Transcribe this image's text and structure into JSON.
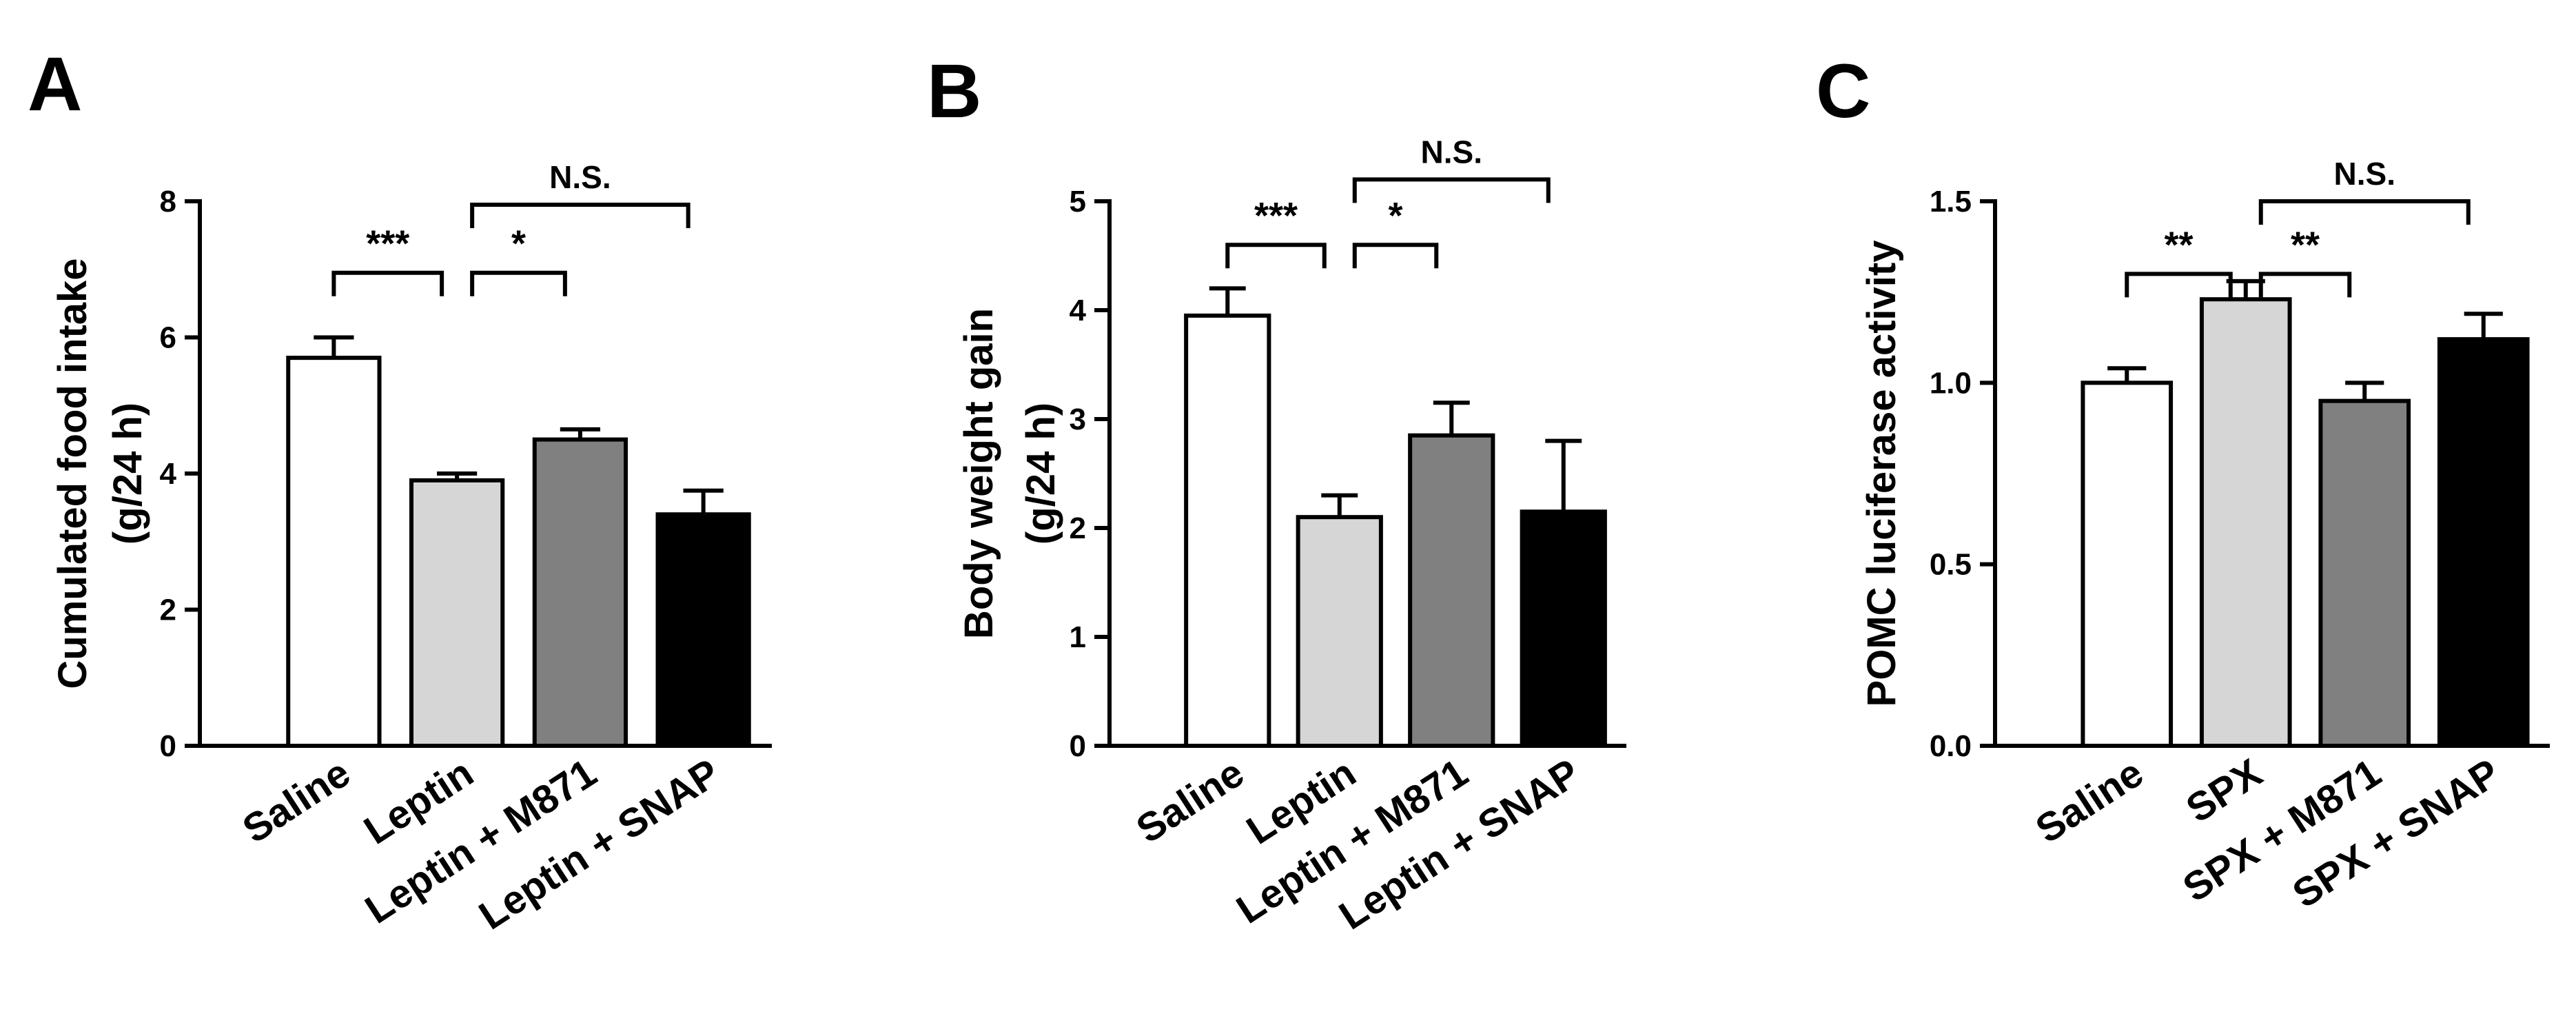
{
  "chart_data": [
    {
      "panel_label": "A",
      "type": "bar",
      "categories": [
        "Saline",
        "Leptin",
        "Leptin + M871",
        "Leptin + SNAP"
      ],
      "values": [
        5.7,
        3.9,
        4.5,
        3.4
      ],
      "errors": [
        0.3,
        0.1,
        0.15,
        0.35
      ],
      "colors": [
        "#ffffff",
        "#d6d6d6",
        "#808080",
        "#000000"
      ],
      "ylabel": "Cumulated food intake",
      "ylabel_unit": "(g/24 h)",
      "ylim": [
        0,
        8
      ],
      "yticks": [
        0,
        2,
        4,
        6,
        8
      ],
      "ytick_labels": [
        "0",
        "2",
        "4",
        "6",
        "8"
      ],
      "significance": [
        {
          "from": 0,
          "to": 1,
          "label": "***",
          "level": 6.95
        },
        {
          "from": 1,
          "to": 2,
          "label": "*",
          "level": 6.95
        },
        {
          "from": 1,
          "to": 3,
          "label": "N.S.",
          "level": 7.95
        }
      ]
    },
    {
      "panel_label": "B",
      "type": "bar",
      "categories": [
        "Saline",
        "Leptin",
        "Leptin + M871",
        "Leptin + SNAP"
      ],
      "values": [
        3.95,
        2.1,
        2.85,
        2.15
      ],
      "errors": [
        0.25,
        0.2,
        0.3,
        0.65
      ],
      "colors": [
        "#ffffff",
        "#d6d6d6",
        "#808080",
        "#000000"
      ],
      "ylabel": "Body weight gain",
      "ylabel_unit": "(g/24 h)",
      "ylim": [
        0,
        5
      ],
      "yticks": [
        0,
        1,
        2,
        3,
        4,
        5
      ],
      "ytick_labels": [
        "0",
        "1",
        "2",
        "3",
        "4",
        "5"
      ],
      "significance": [
        {
          "from": 0,
          "to": 1,
          "label": "***",
          "level": 4.6
        },
        {
          "from": 1,
          "to": 2,
          "label": "*",
          "level": 4.6
        },
        {
          "from": 1,
          "to": 3,
          "label": "N.S.",
          "level": 5.2
        }
      ]
    },
    {
      "panel_label": "C",
      "type": "bar",
      "categories": [
        "Saline",
        "SPX",
        "SPX + M871",
        "SPX + SNAP"
      ],
      "values": [
        1.0,
        1.23,
        0.95,
        1.12
      ],
      "errors": [
        0.04,
        0.05,
        0.05,
        0.07
      ],
      "colors": [
        "#ffffff",
        "#d6d6d6",
        "#808080",
        "#000000"
      ],
      "ylabel": "POMC luciferase activity",
      "ylabel_unit": "",
      "ylim": [
        0,
        1.5
      ],
      "yticks": [
        0,
        0.5,
        1.0,
        1.5
      ],
      "ytick_labels": [
        "0.0",
        "0.5",
        "1.0",
        "1.5"
      ],
      "significance": [
        {
          "from": 0,
          "to": 1,
          "label": "**",
          "level": 1.3
        },
        {
          "from": 1,
          "to": 2,
          "label": "**",
          "level": 1.3
        },
        {
          "from": 1,
          "to": 3,
          "label": "N.S.",
          "level": 1.5
        }
      ]
    }
  ]
}
